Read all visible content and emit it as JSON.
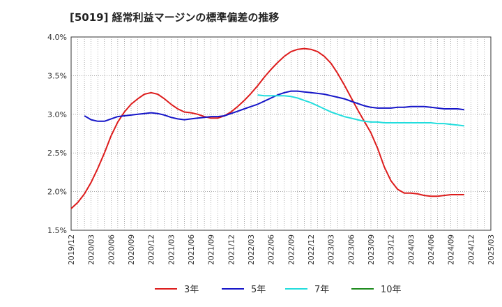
{
  "chart_data": {
    "type": "line",
    "title": "[5019]  経常利益マージンの標準偏差の推移",
    "ylim": [
      1.5,
      4.0
    ],
    "y_ticks": [
      "1.5%",
      "2.0%",
      "2.5%",
      "3.0%",
      "3.5%",
      "4.0%"
    ],
    "y_tick_values": [
      1.5,
      2.0,
      2.5,
      3.0,
      3.5,
      4.0
    ],
    "x_ticks": [
      "2019/12",
      "2020/03",
      "2020/06",
      "2020/09",
      "2020/12",
      "2021/03",
      "2021/06",
      "2021/09",
      "2021/12",
      "2022/03",
      "2022/06",
      "2022/09",
      "2022/12",
      "2023/03",
      "2023/06",
      "2023/09",
      "2023/12",
      "2024/03",
      "2024/06",
      "2024/09",
      "2024/12",
      "2025/03"
    ],
    "grid": true,
    "legend_position": "bottom",
    "series": [
      {
        "name": "3年",
        "color": "#dd1c1c",
        "values": [
          1.78,
          1.86,
          1.97,
          2.12,
          2.3,
          2.5,
          2.72,
          2.9,
          3.03,
          3.13,
          3.2,
          3.26,
          3.28,
          3.26,
          3.2,
          3.13,
          3.07,
          3.03,
          3.02,
          3.0,
          2.97,
          2.95,
          2.95,
          2.98,
          3.03,
          3.1,
          3.18,
          3.27,
          3.37,
          3.48,
          3.58,
          3.67,
          3.75,
          3.81,
          3.84,
          3.85,
          3.84,
          3.81,
          3.75,
          3.66,
          3.53,
          3.38,
          3.22,
          3.06,
          2.91,
          2.76,
          2.56,
          2.32,
          2.14,
          2.03,
          1.98,
          1.98,
          1.97,
          1.95,
          1.94,
          1.94,
          1.95,
          1.96,
          1.96,
          1.96
        ]
      },
      {
        "name": "5年",
        "color": "#1515c8",
        "x_start": "2019/12",
        "values": [
          null,
          null,
          2.98,
          2.93,
          2.91,
          2.91,
          2.94,
          2.97,
          2.98,
          2.99,
          3.0,
          3.01,
          3.02,
          3.01,
          2.99,
          2.96,
          2.94,
          2.93,
          2.94,
          2.95,
          2.96,
          2.97,
          2.97,
          2.98,
          3.01,
          3.04,
          3.07,
          3.1,
          3.13,
          3.17,
          3.21,
          3.25,
          3.28,
          3.3,
          3.3,
          3.29,
          3.28,
          3.27,
          3.26,
          3.24,
          3.22,
          3.2,
          3.17,
          3.14,
          3.11,
          3.09,
          3.08,
          3.08,
          3.08,
          3.09,
          3.09,
          3.1,
          3.1,
          3.1,
          3.09,
          3.08,
          3.07,
          3.07,
          3.07,
          3.06
        ]
      },
      {
        "name": "7年",
        "color": "#22dddd",
        "values": [
          null,
          null,
          null,
          null,
          null,
          null,
          null,
          null,
          null,
          null,
          null,
          null,
          null,
          null,
          null,
          null,
          null,
          null,
          null,
          null,
          null,
          null,
          null,
          null,
          null,
          null,
          null,
          null,
          3.25,
          3.24,
          3.24,
          3.24,
          3.24,
          3.23,
          3.21,
          3.18,
          3.15,
          3.11,
          3.07,
          3.03,
          3.0,
          2.97,
          2.95,
          2.93,
          2.91,
          2.9,
          2.9,
          2.89,
          2.89,
          2.89,
          2.89,
          2.89,
          2.89,
          2.89,
          2.89,
          2.88,
          2.88,
          2.87,
          2.86,
          2.85
        ]
      },
      {
        "name": "10年",
        "color": "#1d8a1d",
        "values": []
      }
    ]
  }
}
